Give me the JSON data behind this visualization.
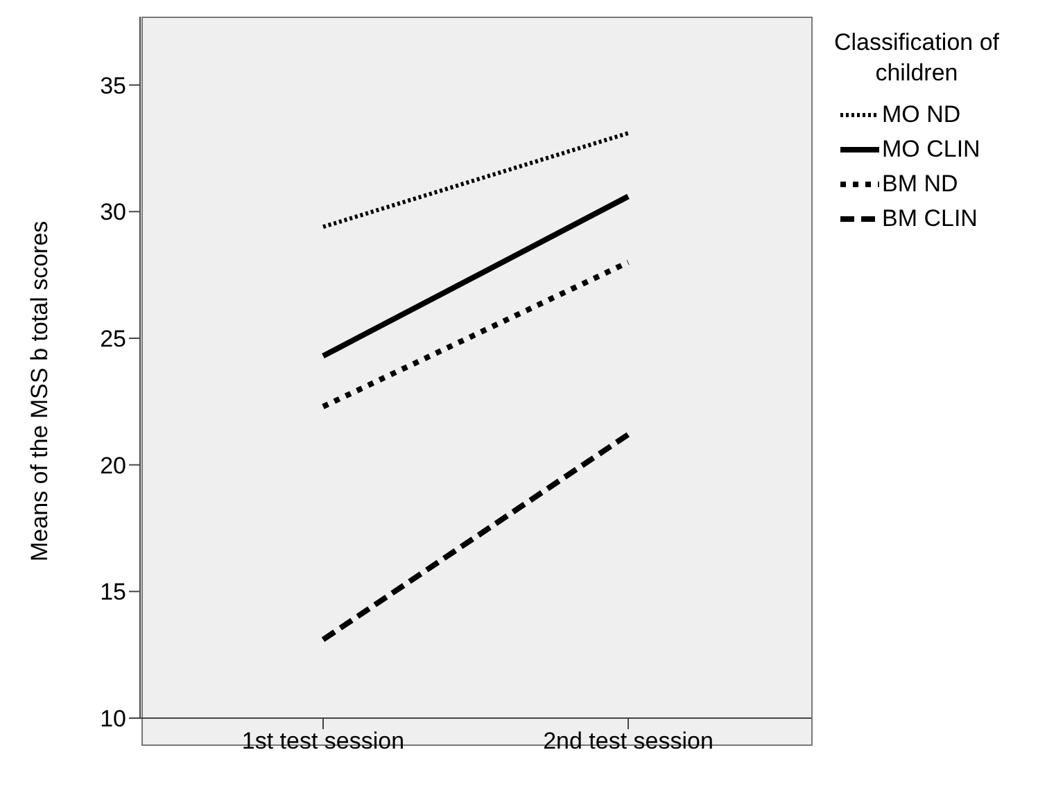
{
  "chart_data": {
    "type": "line",
    "xlabel": null,
    "ylabel": "Means of the MSS b total scores",
    "legend_title": "Classification of children",
    "categories": [
      "1st test session",
      "2nd test session"
    ],
    "series": [
      {
        "name": "MO ND",
        "color": "#000000",
        "line_style": "dotted",
        "values": [
          29.4,
          33.1
        ]
      },
      {
        "name": "MO CLIN",
        "color": "#000000",
        "line_style": "solid",
        "values": [
          24.3,
          30.6
        ]
      },
      {
        "name": "BM ND",
        "color": "#000000",
        "line_style": "dotted",
        "values": [
          22.3,
          28.0
        ]
      },
      {
        "name": "BM CLIN",
        "color": "#000000",
        "line_style": "dashed",
        "values": [
          13.1,
          21.2
        ]
      }
    ],
    "ylim": [
      10,
      37.7
    ],
    "yticks": [
      10,
      15,
      20,
      25,
      30,
      35
    ],
    "grid": false,
    "legend": "top right",
    "marker": "none"
  }
}
